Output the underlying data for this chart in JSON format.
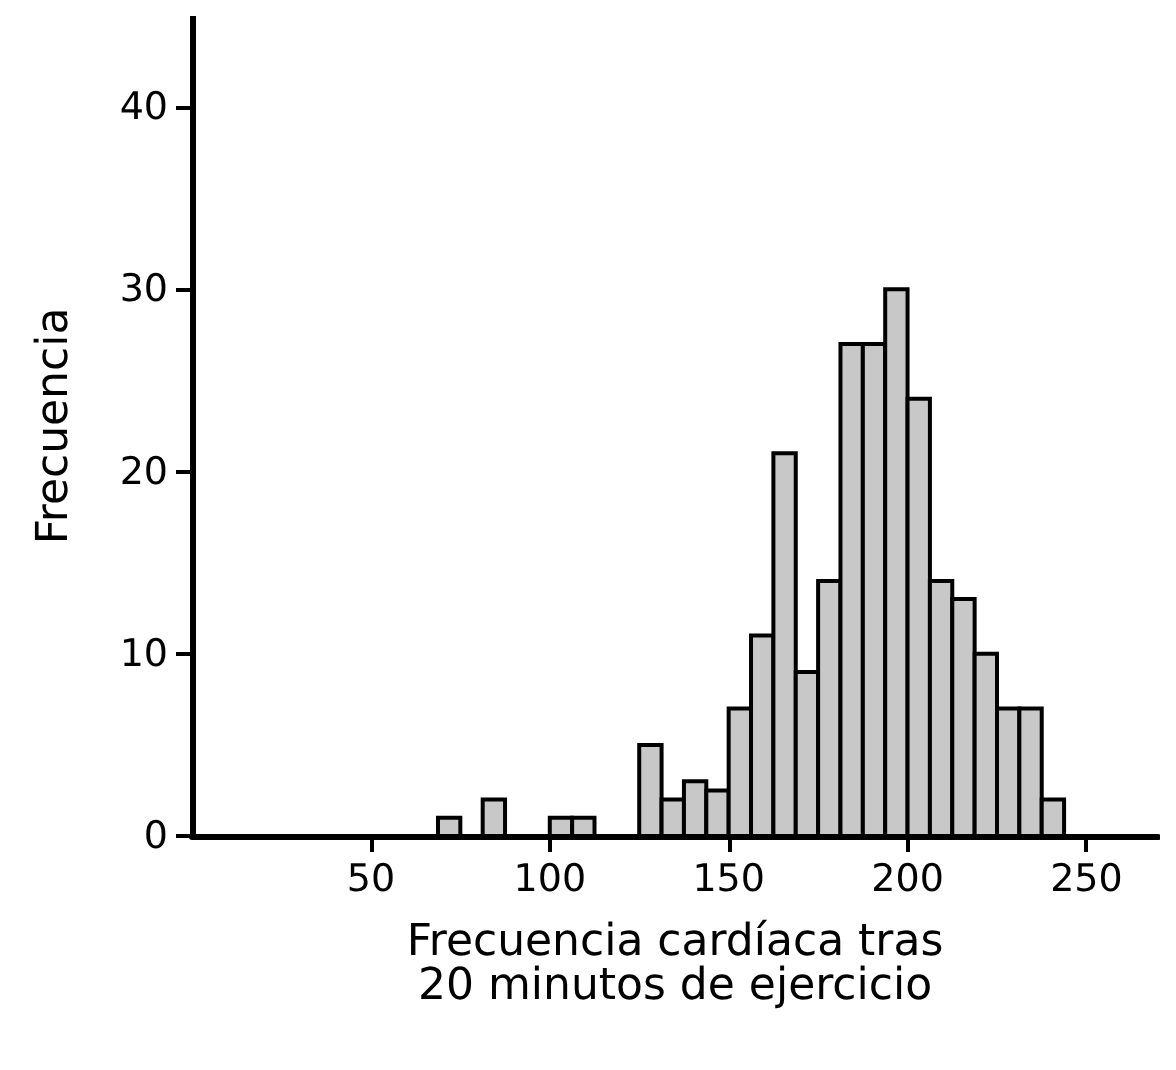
{
  "chart_data": {
    "type": "histogram",
    "xlabel": "Frecuencia cardíaca tras\n20 minutos de ejercicio",
    "ylabel": "Frecuencia",
    "bins": [
      68.75,
      75,
      81.25,
      87.5,
      93.75,
      100,
      106.25,
      112.5,
      118.75,
      125,
      131.25,
      137.5,
      143.75,
      150,
      156.25,
      162.5,
      168.75,
      175,
      181.25,
      187.5,
      193.75,
      200,
      206.25,
      212.5,
      218.75,
      225,
      231.25,
      237.5,
      243.75
    ],
    "values": [
      1,
      0,
      2,
      0,
      0,
      1,
      1,
      0,
      0,
      5,
      2,
      3,
      2.5,
      7,
      11,
      21,
      9,
      14,
      27,
      27,
      30,
      24,
      14,
      13,
      10,
      7,
      7,
      2
    ],
    "color": "#c8c8c8",
    "xlim": [
      0,
      270
    ],
    "ylim": [
      0,
      45
    ],
    "xticks": [
      50,
      100,
      150,
      200,
      250
    ],
    "yticks": [
      0,
      10,
      20,
      30,
      40
    ],
    "grid": false
  }
}
